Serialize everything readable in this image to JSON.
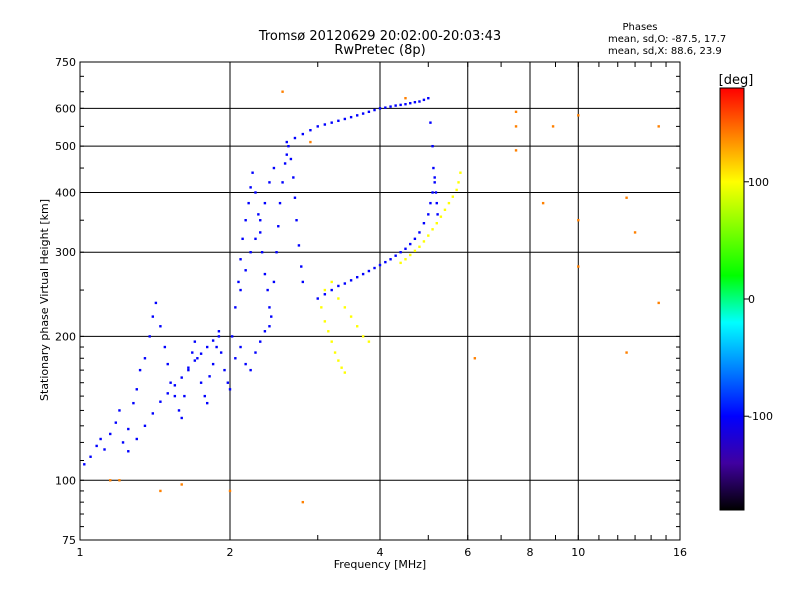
{
  "chart_data": {
    "type": "scatter",
    "title": "Tromsø 20120629 20:02:00-20:03:43",
    "subtitle": "RwPretec (8p)",
    "xlabel": "Frequency [MHz]",
    "ylabel": "Stationary phase Virtual Height [km]",
    "x_scale": "log",
    "y_scale": "log",
    "xlim": [
      1,
      16
    ],
    "ylim": [
      75,
      750
    ],
    "x_ticks": [
      1,
      2,
      4,
      6,
      8,
      10,
      16
    ],
    "y_ticks": [
      75,
      100,
      200,
      300,
      400,
      500,
      600,
      750
    ],
    "grid": true,
    "stats": {
      "heading": "Phases",
      "line_o": "mean, sd,O: -87.5, 17.7",
      "line_x": "mean, sd,X:  88.6, 23.9"
    },
    "colorbar": {
      "label": "[deg]",
      "range": [
        -180,
        180
      ],
      "ticks": [
        100,
        0,
        -100
      ],
      "colors": [
        "#ff0000",
        "#ff8000",
        "#ffff00",
        "#80ff00",
        "#00ff00",
        "#00ffff",
        "#0080ff",
        "#0000ff",
        "#4000a0",
        "#000000"
      ]
    },
    "series": [
      {
        "trace": "o-mode-low-f-cluster",
        "color_phase": -95,
        "points": [
          [
            1.02,
            108
          ],
          [
            1.05,
            112
          ],
          [
            1.08,
            118
          ],
          [
            1.1,
            122
          ],
          [
            1.12,
            116
          ],
          [
            1.15,
            125
          ],
          [
            1.18,
            132
          ],
          [
            1.2,
            140
          ],
          [
            1.22,
            120
          ],
          [
            1.25,
            128
          ],
          [
            1.28,
            145
          ],
          [
            1.3,
            155
          ],
          [
            1.32,
            170
          ],
          [
            1.35,
            180
          ],
          [
            1.38,
            200
          ],
          [
            1.4,
            220
          ],
          [
            1.42,
            235
          ],
          [
            1.45,
            210
          ],
          [
            1.48,
            190
          ],
          [
            1.5,
            175
          ],
          [
            1.52,
            160
          ],
          [
            1.55,
            150
          ],
          [
            1.58,
            140
          ],
          [
            1.6,
            135
          ],
          [
            1.62,
            150
          ],
          [
            1.65,
            170
          ],
          [
            1.68,
            185
          ],
          [
            1.7,
            195
          ],
          [
            1.72,
            180
          ],
          [
            1.75,
            160
          ],
          [
            1.78,
            150
          ],
          [
            1.8,
            145
          ],
          [
            1.82,
            165
          ],
          [
            1.85,
            175
          ],
          [
            1.88,
            190
          ],
          [
            1.9,
            200
          ],
          [
            1.92,
            185
          ],
          [
            1.95,
            170
          ],
          [
            1.98,
            160
          ],
          [
            2.0,
            155
          ],
          [
            1.25,
            115
          ],
          [
            1.3,
            122
          ],
          [
            1.35,
            130
          ],
          [
            1.4,
            138
          ],
          [
            1.45,
            146
          ],
          [
            1.5,
            152
          ],
          [
            1.55,
            158
          ],
          [
            1.6,
            164
          ],
          [
            1.65,
            172
          ],
          [
            1.7,
            178
          ],
          [
            1.75,
            184
          ],
          [
            1.8,
            190
          ],
          [
            1.85,
            196
          ],
          [
            1.9,
            205
          ]
        ]
      },
      {
        "trace": "o-mode-2-3mhz-dense",
        "color_phase": -105,
        "points": [
          [
            2.02,
            200
          ],
          [
            2.05,
            230
          ],
          [
            2.08,
            260
          ],
          [
            2.1,
            290
          ],
          [
            2.12,
            320
          ],
          [
            2.15,
            350
          ],
          [
            2.18,
            380
          ],
          [
            2.2,
            410
          ],
          [
            2.22,
            440
          ],
          [
            2.25,
            400
          ],
          [
            2.28,
            360
          ],
          [
            2.3,
            330
          ],
          [
            2.32,
            300
          ],
          [
            2.35,
            270
          ],
          [
            2.38,
            250
          ],
          [
            2.4,
            230
          ],
          [
            2.42,
            220
          ],
          [
            2.45,
            260
          ],
          [
            2.48,
            300
          ],
          [
            2.5,
            340
          ],
          [
            2.52,
            380
          ],
          [
            2.55,
            420
          ],
          [
            2.58,
            460
          ],
          [
            2.6,
            480
          ],
          [
            2.62,
            500
          ],
          [
            2.65,
            470
          ],
          [
            2.68,
            430
          ],
          [
            2.7,
            390
          ],
          [
            2.72,
            350
          ],
          [
            2.75,
            310
          ],
          [
            2.78,
            280
          ],
          [
            2.8,
            260
          ],
          [
            2.05,
            180
          ],
          [
            2.1,
            190
          ],
          [
            2.15,
            175
          ],
          [
            2.2,
            170
          ],
          [
            2.25,
            185
          ],
          [
            2.3,
            195
          ],
          [
            2.35,
            205
          ],
          [
            2.4,
            210
          ],
          [
            2.1,
            250
          ],
          [
            2.15,
            275
          ],
          [
            2.2,
            300
          ],
          [
            2.25,
            320
          ],
          [
            2.3,
            350
          ],
          [
            2.35,
            380
          ],
          [
            2.4,
            420
          ],
          [
            2.45,
            450
          ]
        ]
      },
      {
        "trace": "o-mode-upper-trace",
        "color_phase": -110,
        "points": [
          [
            2.6,
            510
          ],
          [
            2.7,
            520
          ],
          [
            2.8,
            530
          ],
          [
            2.9,
            540
          ],
          [
            3.0,
            550
          ],
          [
            3.1,
            555
          ],
          [
            3.2,
            560
          ],
          [
            3.3,
            565
          ],
          [
            3.4,
            570
          ],
          [
            3.5,
            575
          ],
          [
            3.6,
            580
          ],
          [
            3.7,
            585
          ],
          [
            3.8,
            590
          ],
          [
            3.9,
            595
          ],
          [
            4.0,
            600
          ],
          [
            4.1,
            602
          ],
          [
            4.2,
            605
          ],
          [
            4.3,
            608
          ],
          [
            4.4,
            610
          ],
          [
            4.5,
            612
          ],
          [
            4.6,
            615
          ],
          [
            4.7,
            618
          ],
          [
            4.8,
            620
          ],
          [
            4.9,
            625
          ],
          [
            5.0,
            630
          ],
          [
            5.05,
            560
          ],
          [
            5.1,
            500
          ],
          [
            5.12,
            450
          ],
          [
            5.15,
            420
          ],
          [
            5.18,
            400
          ],
          [
            5.2,
            380
          ],
          [
            5.22,
            360
          ]
        ]
      },
      {
        "trace": "o-mode-lower-trace",
        "color_phase": -100,
        "points": [
          [
            3.0,
            240
          ],
          [
            3.1,
            245
          ],
          [
            3.2,
            250
          ],
          [
            3.3,
            255
          ],
          [
            3.4,
            258
          ],
          [
            3.5,
            262
          ],
          [
            3.6,
            266
          ],
          [
            3.7,
            270
          ],
          [
            3.8,
            274
          ],
          [
            3.9,
            278
          ],
          [
            4.0,
            282
          ],
          [
            4.1,
            286
          ],
          [
            4.2,
            290
          ],
          [
            4.3,
            295
          ],
          [
            4.4,
            300
          ],
          [
            4.5,
            305
          ],
          [
            4.6,
            312
          ],
          [
            4.7,
            320
          ],
          [
            4.8,
            330
          ],
          [
            4.9,
            345
          ],
          [
            5.0,
            360
          ],
          [
            5.05,
            380
          ],
          [
            5.1,
            400
          ],
          [
            5.15,
            430
          ]
        ]
      },
      {
        "trace": "x-mode-trace",
        "color_phase": 100,
        "points": [
          [
            4.4,
            285
          ],
          [
            4.5,
            290
          ],
          [
            4.6,
            296
          ],
          [
            4.7,
            302
          ],
          [
            4.8,
            308
          ],
          [
            4.9,
            316
          ],
          [
            5.0,
            325
          ],
          [
            5.1,
            335
          ],
          [
            5.2,
            345
          ],
          [
            5.3,
            356
          ],
          [
            5.4,
            368
          ],
          [
            5.5,
            380
          ],
          [
            5.6,
            392
          ],
          [
            5.7,
            405
          ],
          [
            5.75,
            420
          ],
          [
            5.8,
            440
          ],
          [
            3.05,
            230
          ],
          [
            3.1,
            215
          ],
          [
            3.15,
            205
          ],
          [
            3.2,
            195
          ],
          [
            3.25,
            185
          ],
          [
            3.3,
            178
          ],
          [
            3.35,
            172
          ],
          [
            3.4,
            168
          ],
          [
            3.1,
            250
          ],
          [
            3.2,
            260
          ],
          [
            3.3,
            240
          ],
          [
            3.4,
            230
          ],
          [
            3.5,
            220
          ],
          [
            3.6,
            210
          ],
          [
            3.7,
            200
          ],
          [
            3.8,
            195
          ]
        ]
      },
      {
        "trace": "scattered-outliers",
        "color_phase": 140,
        "points": [
          [
            2.55,
            650
          ],
          [
            2.9,
            510
          ],
          [
            4.5,
            630
          ],
          [
            7.5,
            590
          ],
          [
            7.5,
            550
          ],
          [
            7.5,
            490
          ],
          [
            8.9,
            550
          ],
          [
            10.0,
            580
          ],
          [
            8.5,
            380
          ],
          [
            10.0,
            350
          ],
          [
            10.0,
            280
          ],
          [
            12.5,
            390
          ],
          [
            13.0,
            330
          ],
          [
            14.5,
            550
          ],
          [
            14.5,
            235
          ],
          [
            12.5,
            185
          ],
          [
            6.2,
            180
          ],
          [
            2.0,
            95
          ],
          [
            2.8,
            90
          ],
          [
            1.15,
            100
          ],
          [
            1.45,
            95
          ],
          [
            1.6,
            98
          ],
          [
            1.2,
            100
          ]
        ]
      }
    ]
  }
}
